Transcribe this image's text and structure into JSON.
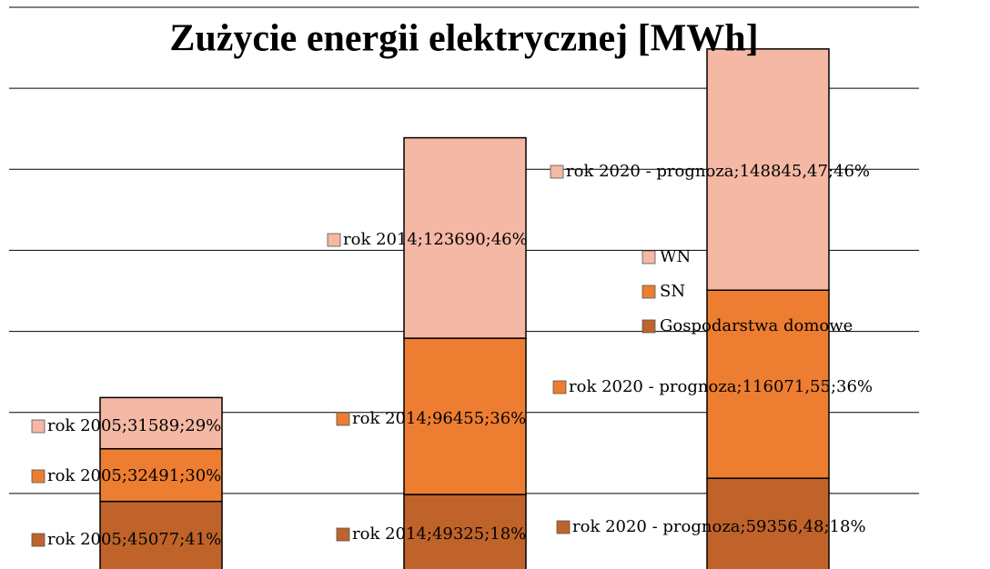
{
  "chart_data": {
    "type": "stacked_bar",
    "title": "Zużycie energii elektrycznej [MWh]",
    "categories": [
      "rok 2005",
      "rok 2014",
      "rok 2020 - prognoza"
    ],
    "series": [
      {
        "name": "Gospodarstwa domowe",
        "color": "#c0632a",
        "values": [
          45077,
          49325,
          59356.48
        ],
        "value_labels": [
          "rok 2005;45077;41%",
          "rok 2014;49325;18%",
          "rok 2020 - prognoza;59356,48;18%"
        ]
      },
      {
        "name": "SN",
        "color": "#ed7d31",
        "values": [
          32491,
          96455,
          116071.55
        ],
        "value_labels": [
          "rok 2005;32491;30%",
          "rok 2014;96455;36%",
          "rok 2020 - prognoza;116071,55;36%"
        ]
      },
      {
        "name": "WN",
        "color": "#f4b8a4",
        "values": [
          31589,
          123690,
          148845.47
        ],
        "value_labels": [
          "rok 2005;31589;29%",
          "rok 2014;123690;46%",
          "rok 2020 - prognoza;148845,47;46%"
        ]
      }
    ],
    "ylim": [
      0,
      350000
    ],
    "yticks": [
      0,
      50000,
      100000,
      150000,
      200000,
      250000,
      300000,
      350000
    ],
    "grid": true,
    "legend": "right"
  }
}
